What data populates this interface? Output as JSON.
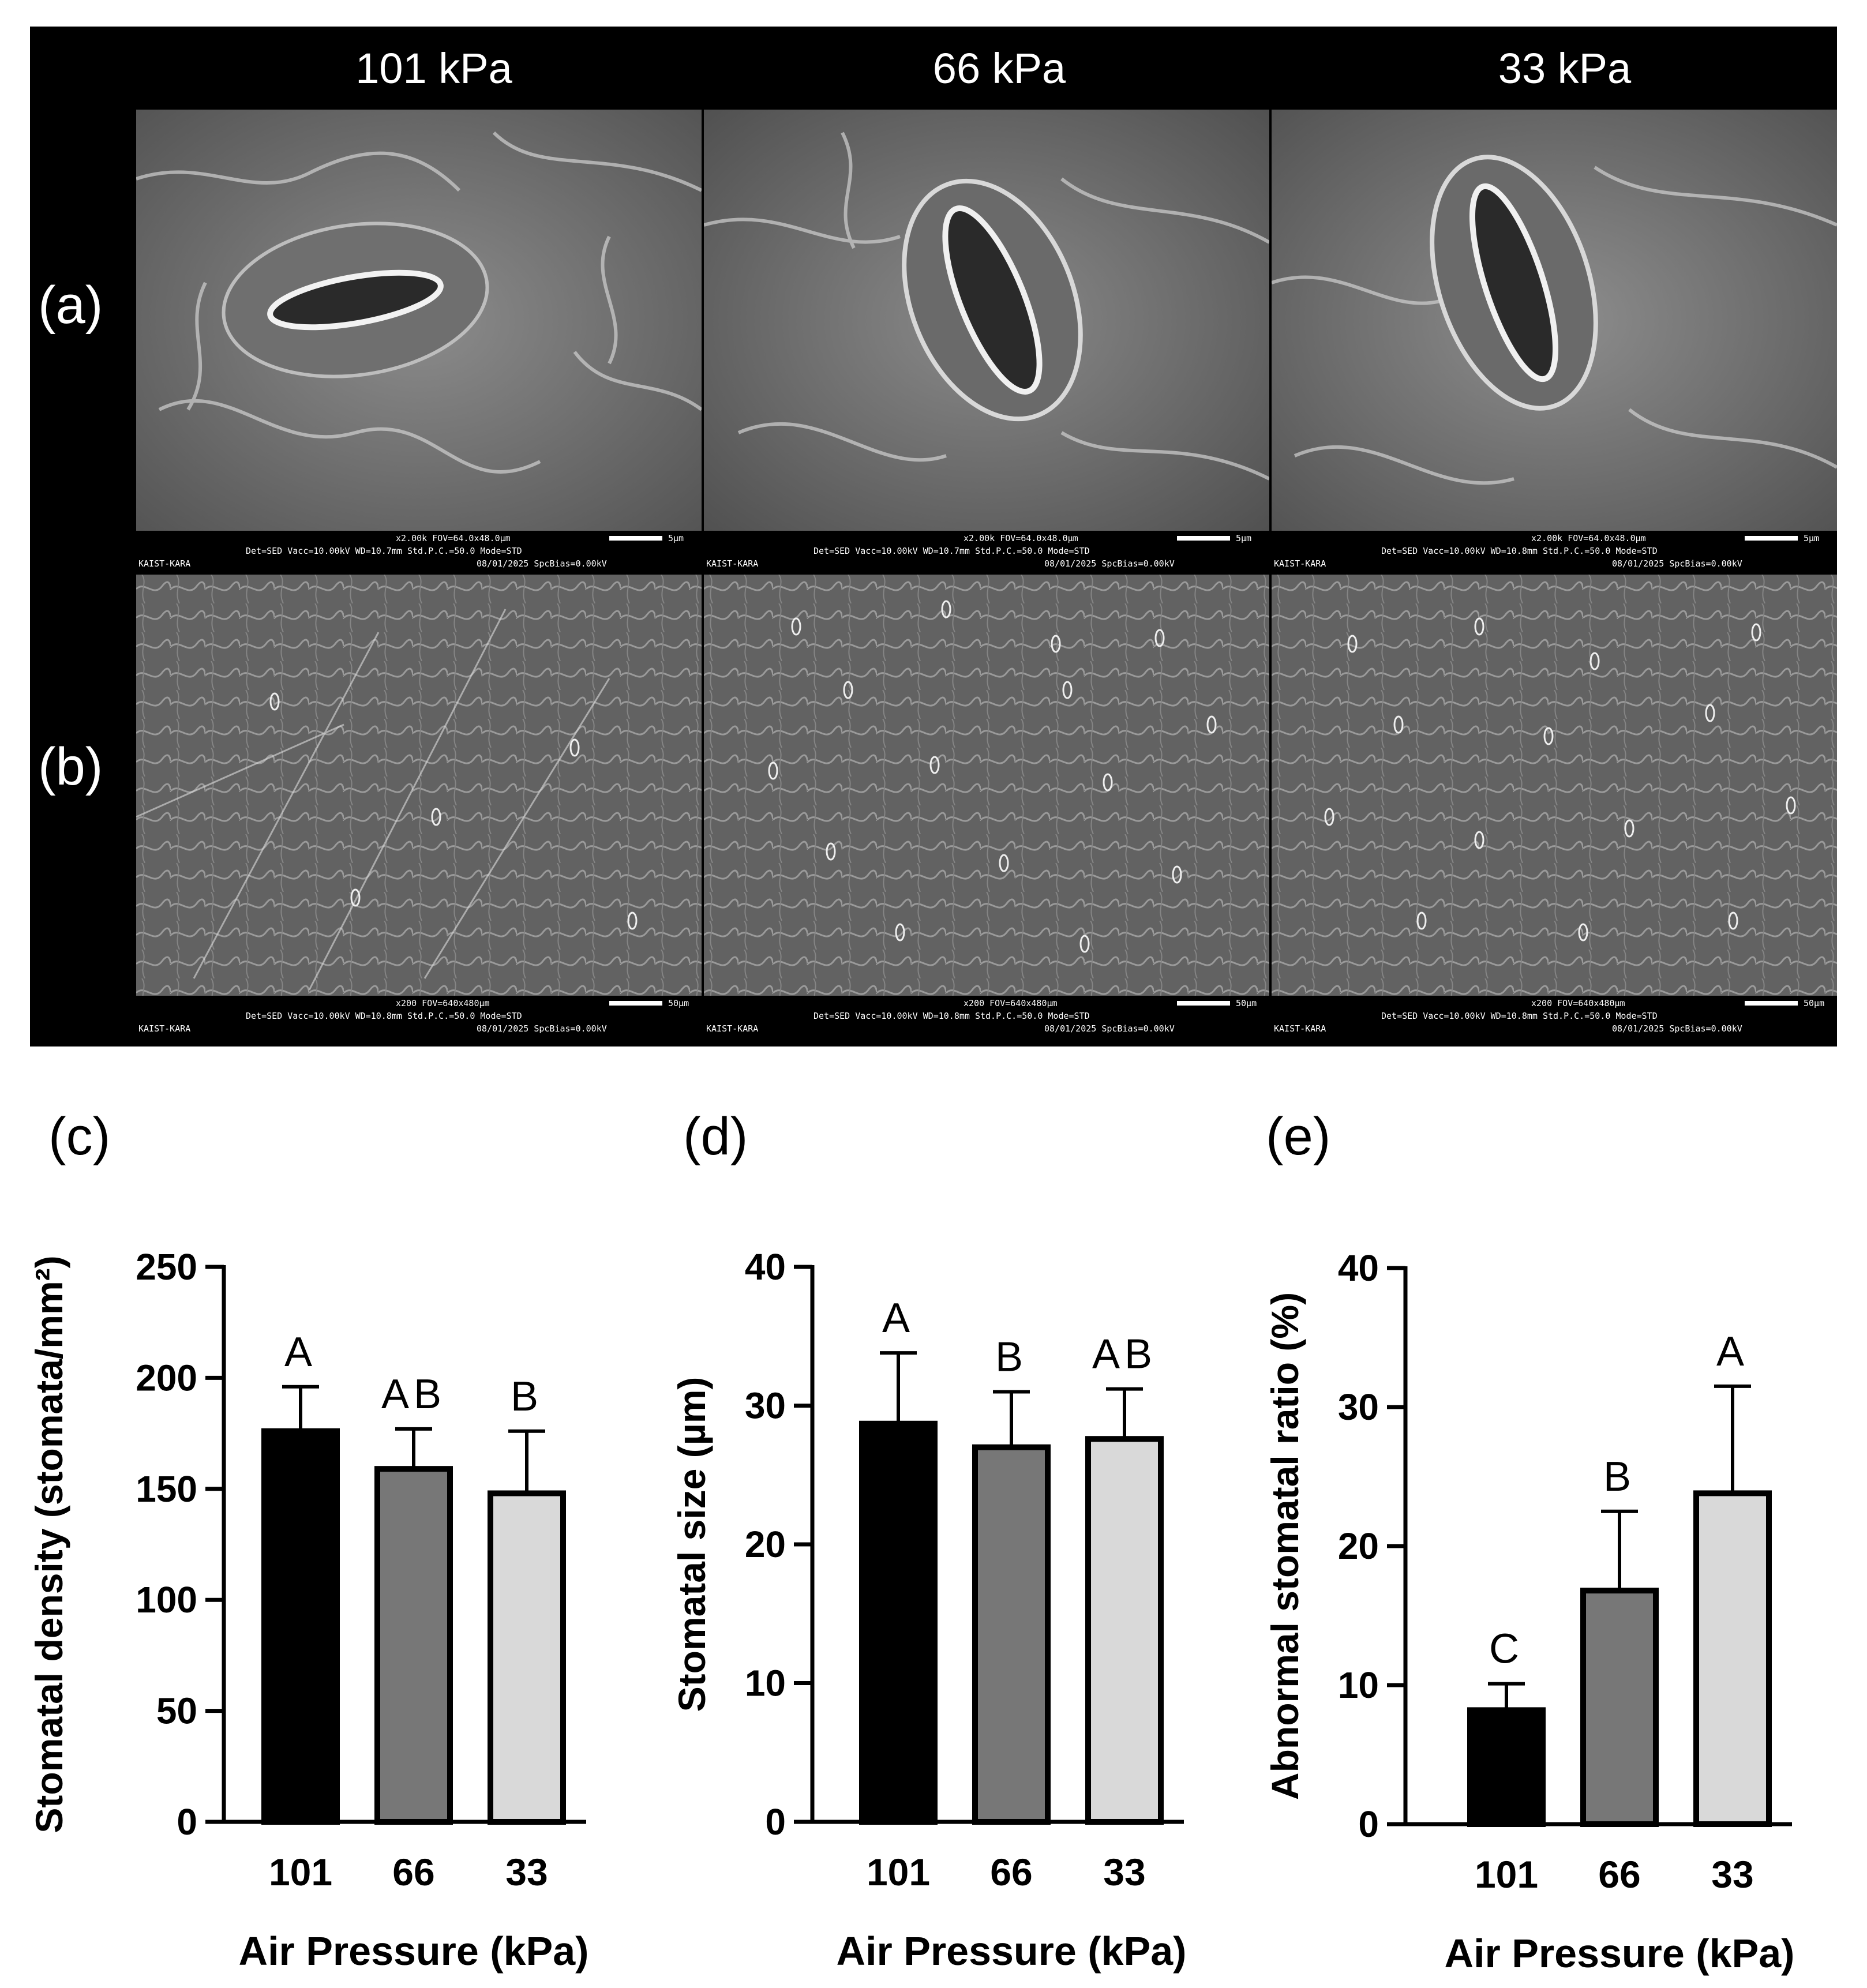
{
  "colors": {
    "bar_101": "#000000",
    "bar_66": "#777777",
    "bar_33": "#d9d9d9",
    "panel_bg": "#000000"
  },
  "sem": {
    "columns": [
      "101 kPa",
      "66 kPa",
      "33 kPa"
    ],
    "rows": [
      "(a)",
      "(b)"
    ],
    "meta_a": [
      {
        "line1": "x2.00k FOV=64.0x48.0µm",
        "scale": "5µm",
        "line2": "Det=SED     Vacc=10.00kV WD=10.7mm   Std.P.C.=50.0  Mode=STD",
        "line3": "KAIST-KARA",
        "line4": "08/01/2025  SpcBias=0.00kV"
      },
      {
        "line1": "x2.00k FOV=64.0x48.0µm",
        "scale": "5µm",
        "line2": "Det=SED     Vacc=10.00kV WD=10.7mm   Std.P.C.=50.0  Mode=STD",
        "line3": "KAIST-KARA",
        "line4": "08/01/2025  SpcBias=0.00kV"
      },
      {
        "line1": "x2.00k FOV=64.0x48.0µm",
        "scale": "5µm",
        "line2": "Det=SED     Vacc=10.00kV WD=10.8mm   Std.P.C.=50.0  Mode=STD",
        "line3": "KAIST-KARA",
        "line4": "08/01/2025  SpcBias=0.00kV"
      }
    ],
    "meta_b": [
      {
        "line1": "x200   FOV=640x480µm",
        "scale": "50µm",
        "line2": "Det=SED     Vacc=10.00kV WD=10.8mm   Std.P.C.=50.0  Mode=STD",
        "line3": "KAIST-KARA",
        "line4": "08/01/2025  SpcBias=0.00kV"
      },
      {
        "line1": "x200   FOV=640x480µm",
        "scale": "50µm",
        "line2": "Det=SED     Vacc=10.00kV WD=10.8mm   Std.P.C.=50.0  Mode=STD",
        "line3": "KAIST-KARA",
        "line4": "08/01/2025  SpcBias=0.00kV"
      },
      {
        "line1": "x200   FOV=640x480µm",
        "scale": "50µm",
        "line2": "Det=SED     Vacc=10.00kV WD=10.8mm   Std.P.C.=50.0  Mode=STD",
        "line3": "KAIST-KARA",
        "line4": "08/01/2025  SpcBias=0.00kV"
      }
    ]
  },
  "chart_data": [
    {
      "panel": "(c)",
      "type": "bar",
      "categories": [
        "101",
        "66",
        "33"
      ],
      "values": [
        176,
        159,
        148
      ],
      "error_upper": [
        196,
        177,
        176
      ],
      "letters": [
        "A",
        "AB",
        "B"
      ],
      "ylabel": "Stomatal density (stomata/mm²)",
      "xlabel": "Air Pressure (kPa)",
      "ylim": [
        0,
        250
      ],
      "yticks": [
        0,
        50,
        100,
        150,
        200,
        250
      ]
    },
    {
      "panel": "(d)",
      "type": "bar",
      "categories": [
        "101",
        "66",
        "33"
      ],
      "values": [
        28.7,
        27.0,
        27.6
      ],
      "error_upper": [
        33.8,
        31.0,
        31.2
      ],
      "letters": [
        "A",
        "B",
        "AB"
      ],
      "ylabel": "Stomatal size (µm)",
      "xlabel": "Air Pressure (kPa)",
      "ylim": [
        0,
        40
      ],
      "yticks": [
        0,
        10,
        20,
        30,
        40
      ]
    },
    {
      "panel": "(e)",
      "type": "bar",
      "categories": [
        "101",
        "66",
        "33"
      ],
      "values": [
        8.2,
        16.8,
        23.8
      ],
      "error_upper": [
        10.1,
        22.5,
        31.5
      ],
      "letters": [
        "C",
        "B",
        "A"
      ],
      "ylabel": "Abnormal stomatal ratio (%)",
      "xlabel": "Air Pressure (kPa)",
      "ylim": [
        0,
        40
      ],
      "yticks": [
        0,
        10,
        20,
        30,
        40
      ]
    }
  ]
}
